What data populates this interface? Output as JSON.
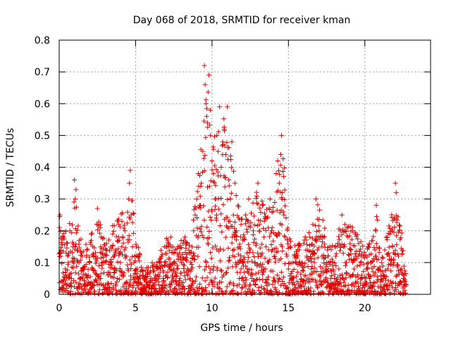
{
  "chart_data": {
    "type": "scatter",
    "title": "Day 068 of 2018, SRMTID for receiver kman",
    "xlabel": "GPS time / hours",
    "ylabel": "SRMTID / TECUs",
    "xlim": [
      0,
      24.3
    ],
    "ylim": [
      0,
      0.8
    ],
    "xticks": [
      0,
      5,
      10,
      15,
      20
    ],
    "yticks": [
      0,
      0.1,
      0.2,
      0.3,
      0.4,
      0.5,
      0.6,
      0.7,
      0.8
    ],
    "ytick_labels": [
      "0",
      "0.1",
      "0.2",
      "0.3",
      "0.4",
      "0.5",
      "0.6",
      "0.7",
      "0.8"
    ],
    "grid": true,
    "marker": "+",
    "color": "#e00000",
    "envelope_note": "dense red cross markers roughly every 0.01 h from 0 to 22.7 h; values follow this approximate upper envelope (hours, TECU)",
    "envelope": [
      [
        0,
        0.25
      ],
      [
        0.5,
        0.2
      ],
      [
        1,
        0.32
      ],
      [
        1.5,
        0.15
      ],
      [
        2,
        0.18
      ],
      [
        2.5,
        0.25
      ],
      [
        3,
        0.18
      ],
      [
        3.5,
        0.22
      ],
      [
        4,
        0.25
      ],
      [
        4.5,
        0.3
      ],
      [
        4.7,
        0.38
      ],
      [
        5,
        0.2
      ],
      [
        5.5,
        0.08
      ],
      [
        6,
        0.1
      ],
      [
        6.5,
        0.12
      ],
      [
        7,
        0.18
      ],
      [
        7.5,
        0.15
      ],
      [
        8,
        0.18
      ],
      [
        8.5,
        0.2
      ],
      [
        9,
        0.35
      ],
      [
        9.5,
        0.72
      ],
      [
        9.8,
        0.68
      ],
      [
        10,
        0.5
      ],
      [
        10.5,
        0.6
      ],
      [
        11,
        0.52
      ],
      [
        11.5,
        0.38
      ],
      [
        12,
        0.25
      ],
      [
        12.5,
        0.28
      ],
      [
        13,
        0.35
      ],
      [
        13.5,
        0.28
      ],
      [
        14,
        0.3
      ],
      [
        14.5,
        0.45
      ],
      [
        14.7,
        0.5
      ],
      [
        15,
        0.2
      ],
      [
        15.5,
        0.15
      ],
      [
        16,
        0.18
      ],
      [
        16.5,
        0.2
      ],
      [
        17,
        0.3
      ],
      [
        17.5,
        0.18
      ],
      [
        18,
        0.15
      ],
      [
        18.5,
        0.25
      ],
      [
        19,
        0.22
      ],
      [
        19.5,
        0.2
      ],
      [
        20,
        0.15
      ],
      [
        20.5,
        0.18
      ],
      [
        20.8,
        0.28
      ],
      [
        21,
        0.12
      ],
      [
        21.5,
        0.2
      ],
      [
        22,
        0.35
      ],
      [
        22.7,
        0.1
      ]
    ],
    "points": [
      [
        0.02,
        0.21
      ],
      [
        0.05,
        0.25
      ],
      [
        0.1,
        0.12
      ],
      [
        0.2,
        0.04
      ],
      [
        0.25,
        0.02
      ],
      [
        0.3,
        0.18
      ],
      [
        0.4,
        0.08
      ],
      [
        0.5,
        0.03
      ],
      [
        0.6,
        0.1
      ],
      [
        0.7,
        0.2
      ],
      [
        0.8,
        0.05
      ],
      [
        0.9,
        0.15
      ],
      [
        1.0,
        0.36
      ],
      [
        1.05,
        0.3
      ],
      [
        1.1,
        0.33
      ],
      [
        1.2,
        0.02
      ],
      [
        1.3,
        0.1
      ],
      [
        1.4,
        0.05
      ],
      [
        1.5,
        0.12
      ],
      [
        1.6,
        0.08
      ],
      [
        1.7,
        0.03
      ],
      [
        1.8,
        0.14
      ],
      [
        1.9,
        0.06
      ],
      [
        2.0,
        0.1
      ],
      [
        2.1,
        0.17
      ],
      [
        2.2,
        0.08
      ],
      [
        2.3,
        0.04
      ],
      [
        2.4,
        0.12
      ],
      [
        2.5,
        0.27
      ],
      [
        2.6,
        0.09
      ],
      [
        2.7,
        0.05
      ],
      [
        2.8,
        0.13
      ],
      [
        2.9,
        0.03
      ],
      [
        3.0,
        0.1
      ],
      [
        3.1,
        0.16
      ],
      [
        3.2,
        0.07
      ],
      [
        3.3,
        0.02
      ],
      [
        3.4,
        0.11
      ],
      [
        3.5,
        0.19
      ],
      [
        3.6,
        0.08
      ],
      [
        3.7,
        0.14
      ],
      [
        3.8,
        0.05
      ],
      [
        3.9,
        0.22
      ],
      [
        4.0,
        0.1
      ],
      [
        4.1,
        0.15
      ],
      [
        4.2,
        0.06
      ],
      [
        4.3,
        0.2
      ],
      [
        4.4,
        0.12
      ],
      [
        4.5,
        0.08
      ],
      [
        4.55,
        0.3
      ],
      [
        4.6,
        0.35
      ],
      [
        4.65,
        0.39
      ],
      [
        4.7,
        0.25
      ],
      [
        4.8,
        0.15
      ],
      [
        4.9,
        0.1
      ],
      [
        5.0,
        0.04
      ],
      [
        5.1,
        0.08
      ],
      [
        5.2,
        0.02
      ],
      [
        5.3,
        0.05
      ],
      [
        5.4,
        0.03
      ],
      [
        5.5,
        0.06
      ],
      [
        5.6,
        0.01
      ],
      [
        5.7,
        0.04
      ],
      [
        5.8,
        0.07
      ],
      [
        5.9,
        0.02
      ],
      [
        6.0,
        0.05
      ],
      [
        6.1,
        0.09
      ],
      [
        6.2,
        0.03
      ],
      [
        6.3,
        0.06
      ],
      [
        6.4,
        0.1
      ],
      [
        6.5,
        0.04
      ],
      [
        6.6,
        0.08
      ],
      [
        6.7,
        0.12
      ],
      [
        6.8,
        0.05
      ],
      [
        6.9,
        0.09
      ],
      [
        7.0,
        0.15
      ],
      [
        7.1,
        0.07
      ],
      [
        7.2,
        0.11
      ],
      [
        7.3,
        0.18
      ],
      [
        7.4,
        0.06
      ],
      [
        7.5,
        0.1
      ],
      [
        7.6,
        0.14
      ],
      [
        7.7,
        0.08
      ],
      [
        7.8,
        0.12
      ],
      [
        7.9,
        0.05
      ],
      [
        8.0,
        0.1
      ],
      [
        8.1,
        0.16
      ],
      [
        8.2,
        0.07
      ],
      [
        8.3,
        0.11
      ],
      [
        8.4,
        0.08
      ],
      [
        8.5,
        0.13
      ],
      [
        8.6,
        0.1
      ],
      [
        8.7,
        0.15
      ],
      [
        8.8,
        0.2
      ],
      [
        8.9,
        0.25
      ],
      [
        9.0,
        0.3
      ],
      [
        9.1,
        0.38
      ],
      [
        9.2,
        0.28
      ],
      [
        9.3,
        0.35
      ],
      [
        9.4,
        0.45
      ],
      [
        9.5,
        0.72
      ],
      [
        9.55,
        0.66
      ],
      [
        9.6,
        0.6
      ],
      [
        9.65,
        0.56
      ],
      [
        9.7,
        0.54
      ],
      [
        9.8,
        0.69
      ],
      [
        9.9,
        0.5
      ],
      [
        10.0,
        0.42
      ],
      [
        10.1,
        0.38
      ],
      [
        10.2,
        0.3
      ],
      [
        10.3,
        0.25
      ],
      [
        10.4,
        0.45
      ],
      [
        10.5,
        0.59
      ],
      [
        10.6,
        0.4
      ],
      [
        10.7,
        0.48
      ],
      [
        10.8,
        0.52
      ],
      [
        10.9,
        0.44
      ],
      [
        11.0,
        0.59
      ],
      [
        11.1,
        0.36
      ],
      [
        11.2,
        0.3
      ],
      [
        11.3,
        0.48
      ],
      [
        11.4,
        0.25
      ],
      [
        11.5,
        0.35
      ],
      [
        11.6,
        0.2
      ],
      [
        11.7,
        0.28
      ],
      [
        11.8,
        0.15
      ],
      [
        11.9,
        0.22
      ],
      [
        12.0,
        0.1
      ],
      [
        12.1,
        0.18
      ],
      [
        12.2,
        0.25
      ],
      [
        12.3,
        0.08
      ],
      [
        12.4,
        0.3
      ],
      [
        12.5,
        0.14
      ],
      [
        12.6,
        0.05
      ],
      [
        12.7,
        0.2
      ],
      [
        12.8,
        0.1
      ],
      [
        12.9,
        0.16
      ],
      [
        13.0,
        0.35
      ],
      [
        13.1,
        0.22
      ],
      [
        13.2,
        0.12
      ],
      [
        13.3,
        0.28
      ],
      [
        13.4,
        0.18
      ],
      [
        13.5,
        0.08
      ],
      [
        13.6,
        0.24
      ],
      [
        13.7,
        0.14
      ],
      [
        13.8,
        0.3
      ],
      [
        13.9,
        0.2
      ],
      [
        14.0,
        0.26
      ],
      [
        14.1,
        0.12
      ],
      [
        14.2,
        0.38
      ],
      [
        14.3,
        0.42
      ],
      [
        14.4,
        0.35
      ],
      [
        14.5,
        0.44
      ],
      [
        14.55,
        0.5
      ],
      [
        14.6,
        0.32
      ],
      [
        14.7,
        0.25
      ],
      [
        14.8,
        0.18
      ],
      [
        14.9,
        0.12
      ],
      [
        15.0,
        0.08
      ],
      [
        15.1,
        0.15
      ],
      [
        15.2,
        0.05
      ],
      [
        15.3,
        0.1
      ],
      [
        15.4,
        0.03
      ],
      [
        15.5,
        0.12
      ],
      [
        15.6,
        0.07
      ],
      [
        15.7,
        0.14
      ],
      [
        15.8,
        0.04
      ],
      [
        15.9,
        0.1
      ],
      [
        16.0,
        0.16
      ],
      [
        16.1,
        0.06
      ],
      [
        16.2,
        0.12
      ],
      [
        16.3,
        0.02
      ],
      [
        16.4,
        0.18
      ],
      [
        16.5,
        0.08
      ],
      [
        16.6,
        0.22
      ],
      [
        16.7,
        0.1
      ],
      [
        16.8,
        0.3
      ],
      [
        16.9,
        0.14
      ],
      [
        17.0,
        0.2
      ],
      [
        17.1,
        0.06
      ],
      [
        17.2,
        0.12
      ],
      [
        17.3,
        0.18
      ],
      [
        17.4,
        0.04
      ],
      [
        17.5,
        0.1
      ],
      [
        17.6,
        0.08
      ],
      [
        17.7,
        0.15
      ],
      [
        17.8,
        0.03
      ],
      [
        17.9,
        0.09
      ],
      [
        18.0,
        0.05
      ],
      [
        18.1,
        0.12
      ],
      [
        18.2,
        0.02
      ],
      [
        18.3,
        0.08
      ],
      [
        18.4,
        0.2
      ],
      [
        18.5,
        0.25
      ],
      [
        18.6,
        0.15
      ],
      [
        18.7,
        0.22
      ],
      [
        18.8,
        0.1
      ],
      [
        18.9,
        0.18
      ],
      [
        19.0,
        0.06
      ],
      [
        19.1,
        0.14
      ],
      [
        19.2,
        0.2
      ],
      [
        19.3,
        0.08
      ],
      [
        19.4,
        0.12
      ],
      [
        19.5,
        0.04
      ],
      [
        19.6,
        0.16
      ],
      [
        19.7,
        0.1
      ],
      [
        19.8,
        0.06
      ],
      [
        19.9,
        0.12
      ],
      [
        20.0,
        0.03
      ],
      [
        20.1,
        0.08
      ],
      [
        20.2,
        0.15
      ],
      [
        20.3,
        0.05
      ],
      [
        20.4,
        0.1
      ],
      [
        20.5,
        0.02
      ],
      [
        20.6,
        0.06
      ],
      [
        20.7,
        0.12
      ],
      [
        20.75,
        0.28
      ],
      [
        20.8,
        0.04
      ],
      [
        20.9,
        0.08
      ],
      [
        21.0,
        0.02
      ],
      [
        21.1,
        0.1
      ],
      [
        21.2,
        0.05
      ],
      [
        21.3,
        0.14
      ],
      [
        21.4,
        0.18
      ],
      [
        21.5,
        0.08
      ],
      [
        21.6,
        0.12
      ],
      [
        21.7,
        0.04
      ],
      [
        21.8,
        0.2
      ],
      [
        21.9,
        0.1
      ],
      [
        22.0,
        0.35
      ],
      [
        22.05,
        0.32
      ],
      [
        22.1,
        0.06
      ],
      [
        22.2,
        0.12
      ],
      [
        22.3,
        0.04
      ],
      [
        22.4,
        0.08
      ],
      [
        22.5,
        0.02
      ],
      [
        22.6,
        0.06
      ],
      [
        22.7,
        0.03
      ]
    ]
  }
}
